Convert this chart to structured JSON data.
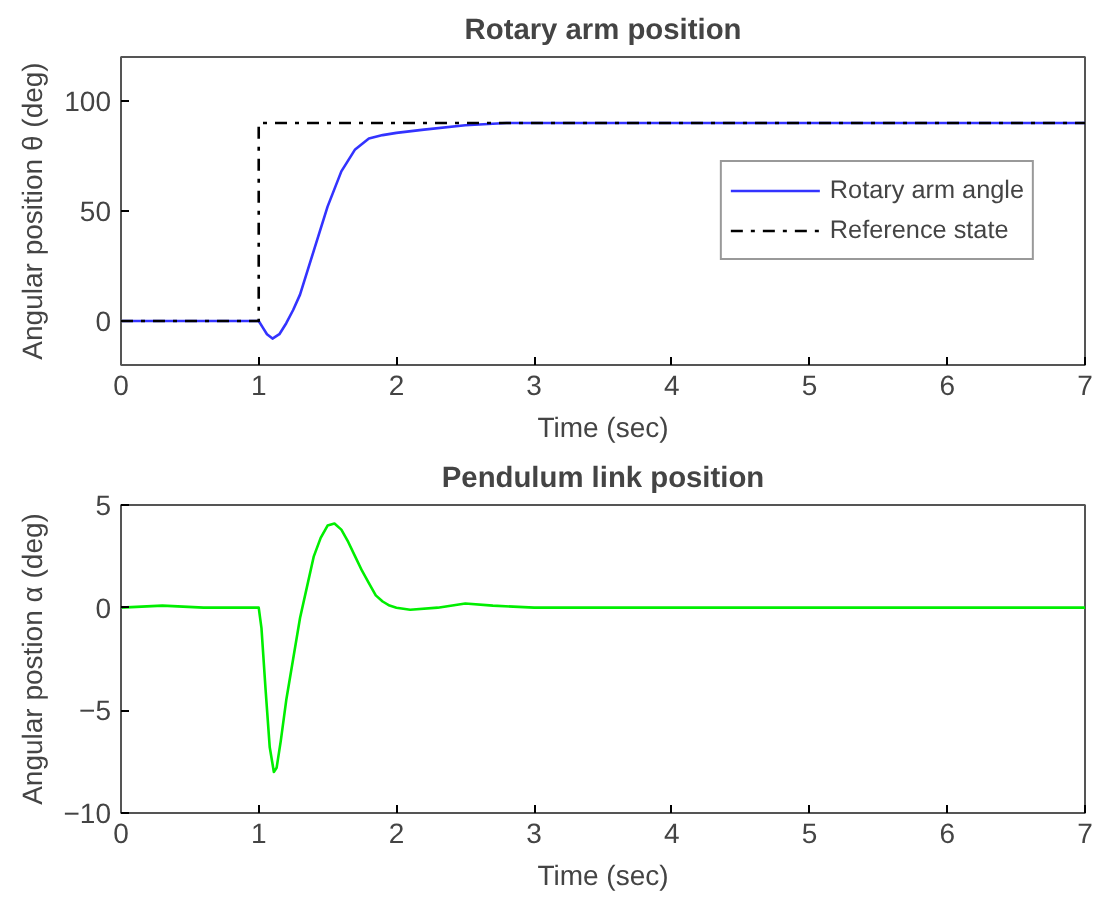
{
  "chart_data": [
    {
      "type": "line",
      "title": "Rotary arm position",
      "xlabel": "Time (sec)",
      "ylabel": "Angular position θ (deg)",
      "xlim": [
        0,
        7
      ],
      "ylim": [
        -20,
        120
      ],
      "xticks": [
        0,
        1,
        2,
        3,
        4,
        5,
        6,
        7
      ],
      "yticks": [
        0,
        50,
        100
      ],
      "grid": false,
      "legend": "right",
      "series": [
        {
          "name": "Rotary arm angle",
          "color": "#3333ff",
          "line_style": "solid",
          "x": [
            0,
            0.5,
            1.0,
            1.03,
            1.06,
            1.1,
            1.15,
            1.2,
            1.25,
            1.3,
            1.4,
            1.5,
            1.6,
            1.7,
            1.8,
            1.9,
            2.0,
            2.2,
            2.5,
            2.8,
            3.0,
            4.0,
            5.0,
            6.0,
            7.0
          ],
          "values": [
            0,
            0,
            0,
            -3,
            -6,
            -8,
            -6,
            -1,
            5,
            12,
            32,
            52,
            68,
            78,
            83,
            84.5,
            85.5,
            87,
            89,
            90,
            90,
            90,
            90,
            90,
            90
          ]
        },
        {
          "name": "Reference state",
          "color": "#000000",
          "line_style": "dashdot",
          "x": [
            0,
            1,
            1,
            7
          ],
          "values": [
            0,
            0,
            90,
            90
          ]
        }
      ]
    },
    {
      "type": "line",
      "title": "Pendulum link position",
      "xlabel": "Time (sec)",
      "ylabel": "Angular postion α (deg)",
      "xlim": [
        0,
        7
      ],
      "ylim": [
        -10,
        5
      ],
      "xticks": [
        0,
        1,
        2,
        3,
        4,
        5,
        6,
        7
      ],
      "yticks": [
        0,
        -5,
        -10,
        5
      ],
      "grid": false,
      "legend": false,
      "series": [
        {
          "color": "#00ee00",
          "line_style": "solid",
          "x": [
            0,
            0.3,
            0.6,
            1.0,
            1.02,
            1.05,
            1.08,
            1.11,
            1.13,
            1.16,
            1.2,
            1.25,
            1.3,
            1.35,
            1.4,
            1.45,
            1.5,
            1.55,
            1.6,
            1.65,
            1.7,
            1.75,
            1.8,
            1.85,
            1.9,
            1.95,
            2.0,
            2.1,
            2.3,
            2.5,
            2.7,
            3.0,
            4.0,
            5.0,
            6.0,
            7.0
          ],
          "values": [
            0,
            0.1,
            0,
            0,
            -1,
            -4,
            -6.8,
            -8,
            -7.8,
            -6.5,
            -4.5,
            -2.5,
            -0.5,
            1,
            2.5,
            3.4,
            4,
            4.1,
            3.8,
            3.2,
            2.5,
            1.8,
            1.2,
            0.6,
            0.3,
            0.1,
            0,
            -0.1,
            0,
            0.2,
            0.1,
            0,
            0,
            0,
            0,
            0
          ]
        }
      ]
    }
  ]
}
